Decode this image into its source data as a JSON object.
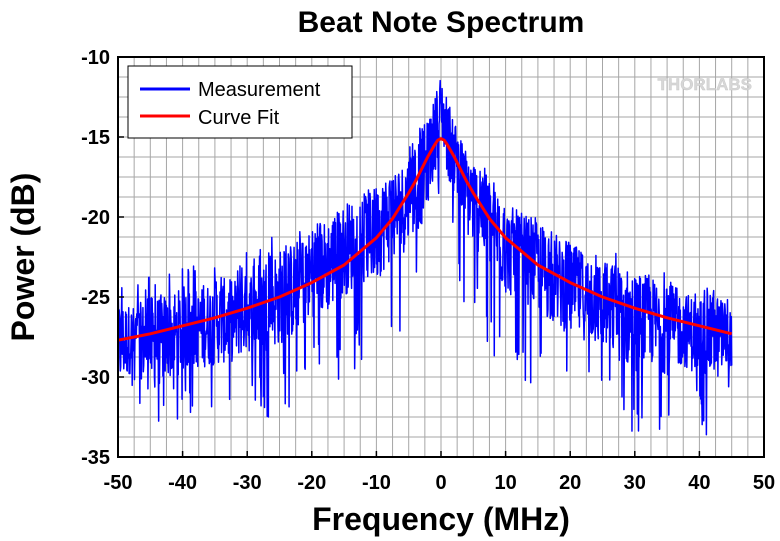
{
  "chart_data": {
    "type": "line",
    "title": "Beat Note Spectrum",
    "xlabel": "Frequency (MHz)",
    "ylabel": "Power (dB)",
    "xlim": [
      -50,
      50
    ],
    "ylim": [
      -35,
      -10
    ],
    "x_ticks": [
      -50,
      -40,
      -30,
      -20,
      -10,
      0,
      10,
      20,
      30,
      40,
      50
    ],
    "y_ticks": [
      -35,
      -30,
      -25,
      -20,
      -15,
      -10
    ],
    "grid": true,
    "legend_position": "top-left",
    "watermark": "THORLABS",
    "series": [
      {
        "name": "Measurement",
        "color": "#0000ff",
        "x": [
          -50,
          -47.5,
          -45,
          -42.5,
          -40,
          -37.5,
          -35,
          -32.5,
          -30,
          -27.5,
          -25,
          -22.5,
          -20,
          -17.5,
          -15,
          -12.5,
          -10,
          -8,
          -6,
          -4,
          -3,
          -2,
          -1,
          -0.5,
          0,
          0.5,
          1,
          2,
          3,
          4,
          6,
          8,
          10,
          12.5,
          15,
          17.5,
          20,
          22.5,
          25,
          27.5,
          30,
          32.5,
          35,
          37.5,
          40,
          42.5,
          45
        ],
        "y": [
          -28,
          -27.5,
          -28,
          -27.5,
          -27,
          -27,
          -26.5,
          -26.5,
          -26,
          -25.5,
          -25,
          -24.5,
          -23.5,
          -23,
          -22,
          -21.5,
          -21,
          -20,
          -19.5,
          -18,
          -17.5,
          -16.5,
          -15,
          -14,
          -13,
          -14,
          -15,
          -16,
          -17.5,
          -18.5,
          -19.5,
          -20.5,
          -22,
          -22.5,
          -23,
          -24,
          -24.5,
          -25,
          -25.5,
          -26,
          -26.5,
          -26.5,
          -27,
          -27,
          -27.5,
          -27.5,
          -27.5
        ],
        "y_min": [
          -34,
          -31,
          -34.5,
          -33,
          -33,
          -32,
          -33,
          -32,
          -31,
          -33,
          -32,
          -32,
          -30.5,
          -31,
          -30,
          -29.5,
          -29,
          -28,
          -27,
          -26,
          -25,
          -23,
          -21.5,
          -20,
          -19,
          -20,
          -22,
          -23.5,
          -25,
          -26,
          -27.5,
          -29,
          -30,
          -30,
          -31,
          -31,
          -32,
          -32,
          -32.5,
          -33,
          -34.5,
          -33,
          -34,
          -32,
          -33,
          -34.5,
          -32
        ],
        "y_max": [
          -23.5,
          -24,
          -23.5,
          -23,
          -23,
          -23,
          -23,
          -22.5,
          -22,
          -21.5,
          -21,
          -21,
          -20.5,
          -20,
          -19.5,
          -19,
          -18,
          -17.5,
          -16.5,
          -15,
          -14,
          -13.5,
          -12.5,
          -12,
          -11.7,
          -12,
          -13,
          -14,
          -15.5,
          -16,
          -17,
          -18,
          -19.5,
          -20,
          -20.5,
          -21,
          -21.5,
          -22,
          -22.5,
          -22,
          -23,
          -23,
          -23.5,
          -23.5,
          -24,
          -24.5,
          -25
        ]
      },
      {
        "name": "Curve Fit",
        "color": "#ff0000",
        "x": [
          -50,
          -45,
          -40,
          -35,
          -30,
          -25,
          -20,
          -15,
          -10,
          -7.5,
          -5,
          -4,
          -3,
          -2,
          -1,
          -0.5,
          0,
          0.5,
          1,
          2,
          3,
          4,
          5,
          7.5,
          10,
          15,
          20,
          25,
          30,
          35,
          40,
          45
        ],
        "y": [
          -27.7,
          -27.3,
          -26.8,
          -26.3,
          -25.7,
          -25.0,
          -24.1,
          -23.0,
          -21.3,
          -20.1,
          -18.5,
          -17.8,
          -17.0,
          -16.2,
          -15.5,
          -15.2,
          -15.1,
          -15.2,
          -15.5,
          -16.2,
          -17.0,
          -17.8,
          -18.5,
          -20.1,
          -21.3,
          -23.0,
          -24.1,
          -25.0,
          -25.7,
          -26.3,
          -26.8,
          -27.3
        ]
      }
    ]
  }
}
